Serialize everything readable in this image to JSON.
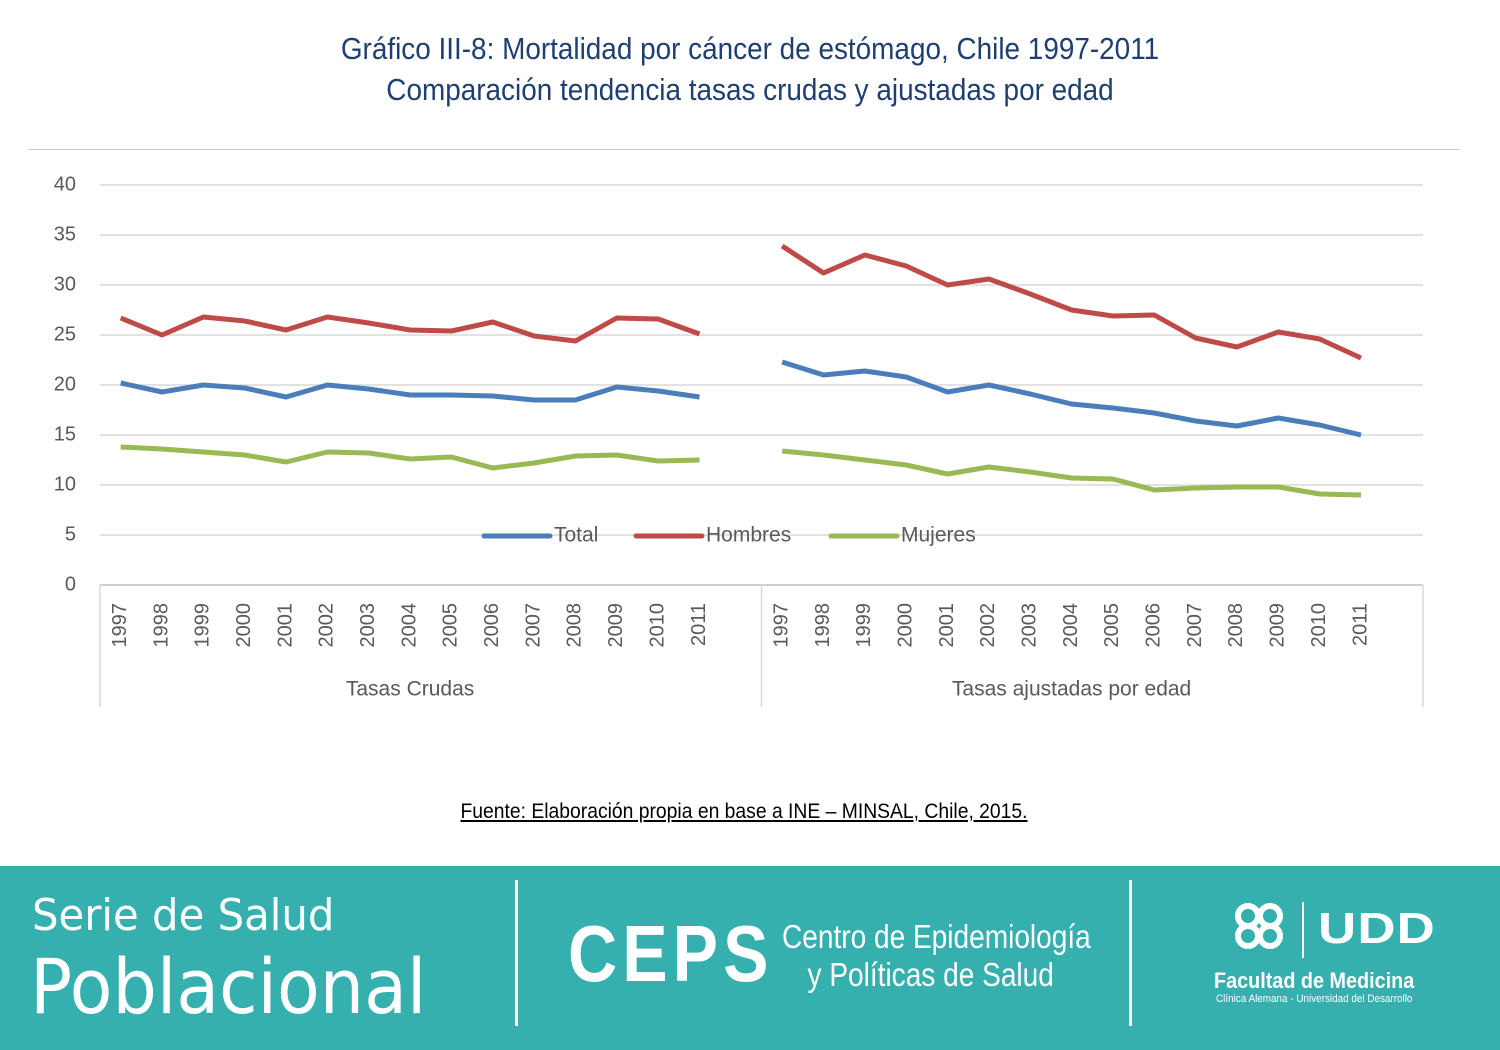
{
  "chart_data": {
    "type": "line",
    "title": "Gráfico III-8: Mortalidad por cáncer de estómago, Chile 1997-2011",
    "subtitle": "Comparación tendencia tasas crudas y ajustadas por edad",
    "groups": [
      {
        "name": "Tasas Crudas",
        "categories": [
          "1997",
          "1998",
          "1999",
          "2000",
          "2001",
          "2002",
          "2003",
          "2004",
          "2005",
          "2006",
          "2007",
          "2008",
          "2009",
          "2010",
          "2011"
        ]
      },
      {
        "name": "Tasas ajustadas por edad",
        "categories": [
          "1997",
          "1998",
          "1999",
          "2000",
          "2001",
          "2002",
          "2003",
          "2004",
          "2005",
          "2006",
          "2007",
          "2008",
          "2009",
          "2010",
          "2011"
        ]
      }
    ],
    "series": [
      {
        "name": "Total",
        "color": "#4a7ebb",
        "values": [
          [
            20.2,
            19.3,
            20.0,
            19.7,
            18.8,
            20.0,
            19.6,
            19.0,
            19.0,
            18.9,
            18.5,
            18.5,
            19.8,
            19.4,
            18.8
          ],
          [
            22.3,
            21.0,
            21.4,
            20.8,
            19.3,
            20.0,
            19.1,
            18.1,
            17.7,
            17.2,
            16.4,
            15.9,
            16.7,
            16.0,
            15.0
          ]
        ]
      },
      {
        "name": "Hombres",
        "color": "#be4b48",
        "values": [
          [
            26.7,
            25.0,
            26.8,
            26.4,
            25.5,
            26.8,
            26.2,
            25.5,
            25.4,
            26.3,
            24.9,
            24.4,
            26.7,
            26.6,
            25.1
          ],
          [
            33.9,
            31.2,
            33.0,
            31.9,
            30.0,
            30.6,
            29.1,
            27.5,
            26.9,
            27.0,
            24.7,
            23.8,
            25.3,
            24.6,
            22.7
          ]
        ]
      },
      {
        "name": "Mujeres",
        "color": "#98b954",
        "values": [
          [
            13.8,
            13.6,
            13.3,
            13.0,
            12.3,
            13.3,
            13.2,
            12.6,
            12.8,
            11.7,
            12.2,
            12.9,
            13.0,
            12.4,
            12.5
          ],
          [
            13.4,
            13.0,
            12.5,
            12.0,
            11.1,
            11.8,
            11.3,
            10.7,
            10.6,
            9.5,
            9.7,
            9.8,
            9.8,
            9.1,
            9.0
          ]
        ]
      }
    ],
    "ylim": [
      0,
      40
    ],
    "yticks": [
      0,
      5,
      10,
      15,
      20,
      25,
      30,
      35,
      40
    ],
    "grid": true,
    "legend": "bottom"
  },
  "source": "Fuente: Elaboración propia en base a INE – MINSAL, Chile, 2015.",
  "footer": {
    "series_line1": "Serie de Salud",
    "series_line2": "Poblacional",
    "ceps": "CEPS",
    "ceps_line1": "Centro de Epidemiología",
    "ceps_line2": "y Políticas de Salud",
    "udd": "UDD",
    "faculty": "Facultad de Medicina",
    "university": "Clínica Alemana - Universidad del Desarrollo"
  }
}
